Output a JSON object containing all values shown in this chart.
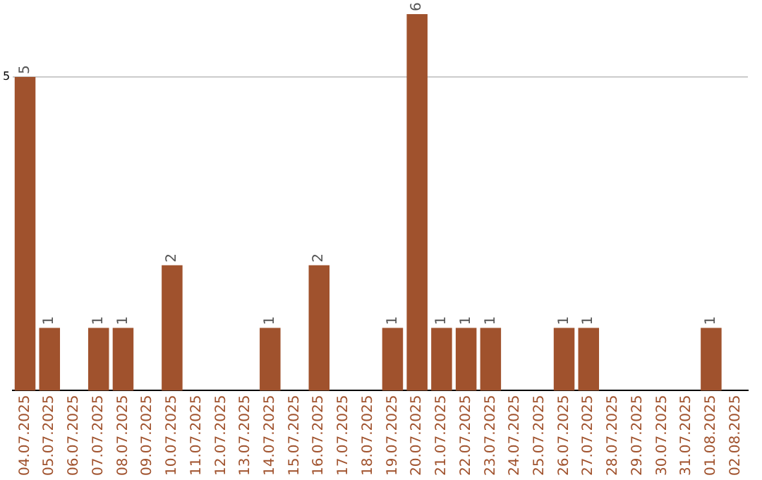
{
  "chart_data": {
    "type": "bar",
    "categories": [
      "04.07.2025",
      "05.07.2025",
      "06.07.2025",
      "07.07.2025",
      "08.07.2025",
      "09.07.2025",
      "10.07.2025",
      "11.07.2025",
      "12.07.2025",
      "13.07.2025",
      "14.07.2025",
      "15.07.2025",
      "16.07.2025",
      "17.07.2025",
      "18.07.2025",
      "19.07.2025",
      "20.07.2025",
      "21.07.2025",
      "22.07.2025",
      "23.07.2025",
      "24.07.2025",
      "25.07.2025",
      "26.07.2025",
      "27.07.2025",
      "28.07.2025",
      "29.07.2025",
      "30.07.2025",
      "31.07.2025",
      "01.08.2025",
      "02.08.2025"
    ],
    "values": [
      5,
      1,
      0,
      1,
      1,
      0,
      2,
      0,
      0,
      0,
      1,
      0,
      2,
      0,
      0,
      1,
      6,
      1,
      1,
      1,
      0,
      0,
      1,
      1,
      0,
      0,
      0,
      0,
      1,
      0
    ],
    "value_labels": [
      "5",
      "1",
      null,
      "1",
      "1",
      null,
      "2",
      null,
      null,
      null,
      "1",
      null,
      "2",
      null,
      null,
      "1",
      "6",
      "1",
      "1",
      "1",
      null,
      null,
      "1",
      "1",
      null,
      null,
      null,
      null,
      "1",
      null
    ],
    "color": "#a0522d",
    "ylim": [
      0,
      6
    ],
    "yticks": [
      5
    ],
    "grid": "y"
  }
}
